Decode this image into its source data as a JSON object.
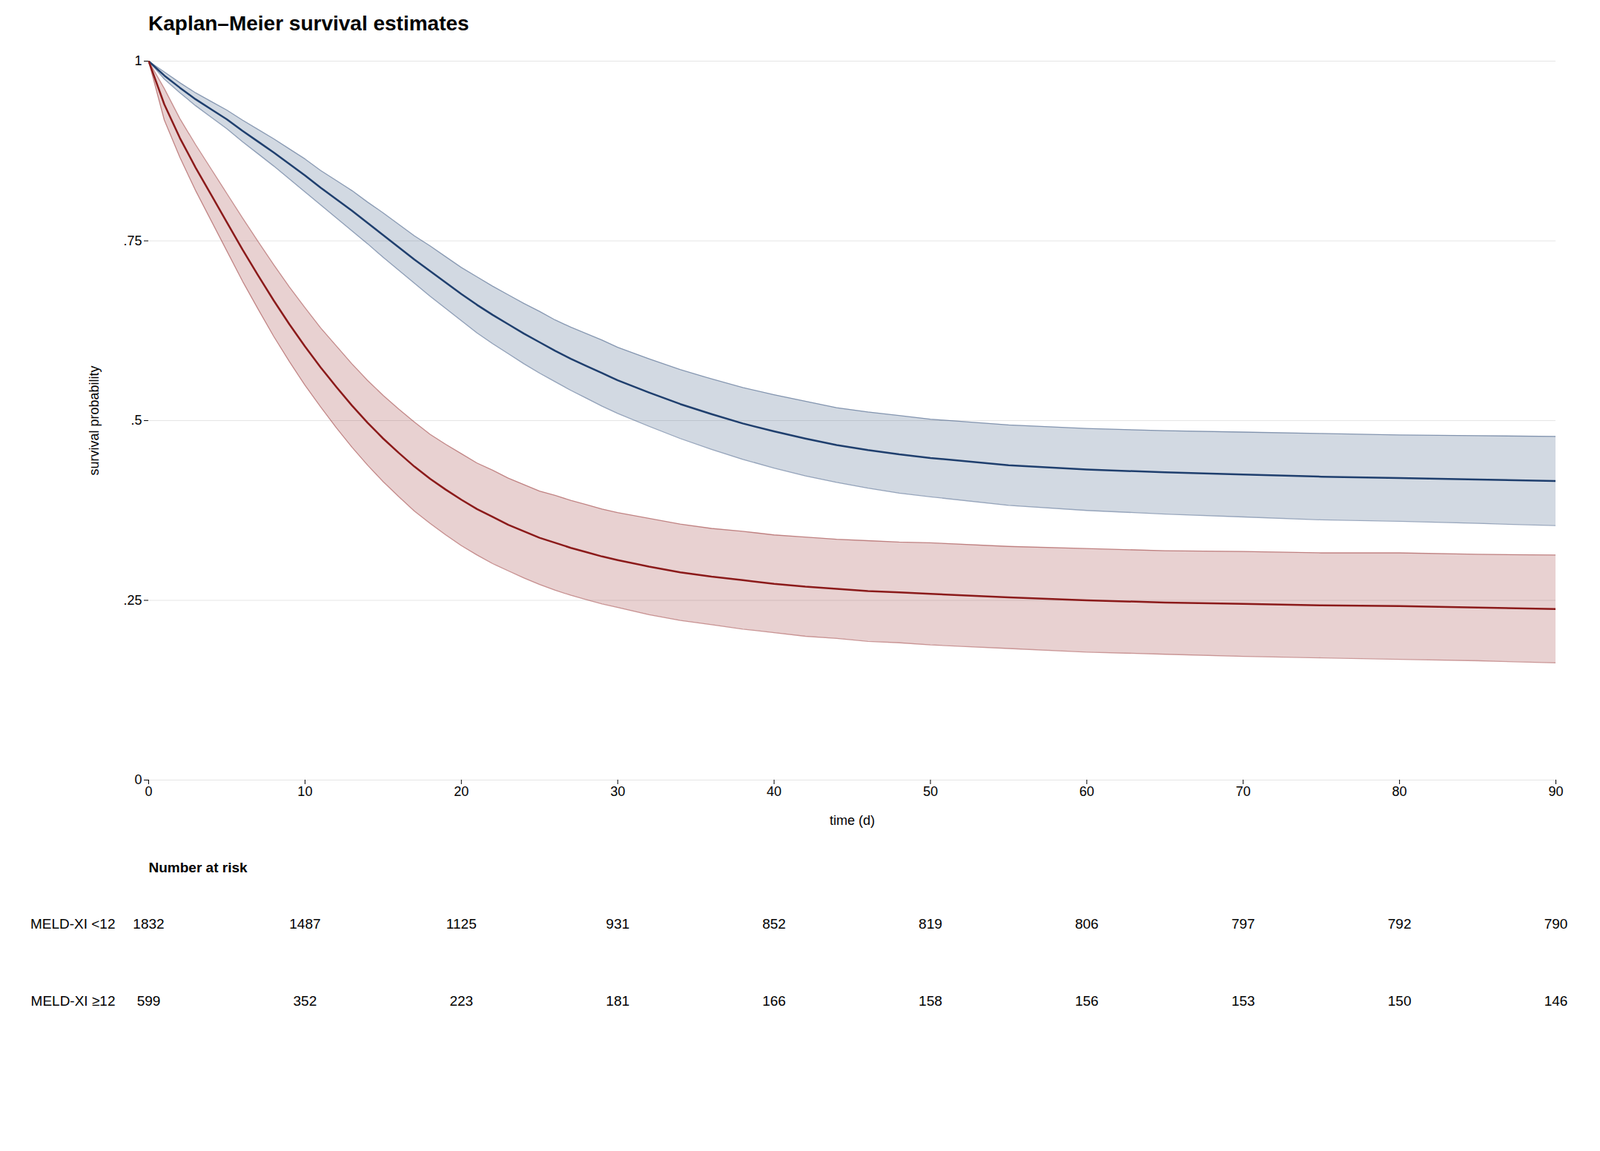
{
  "chart_data": {
    "type": "line",
    "title": "Kaplan–Meier survival estimates",
    "xlabel": "time (d)",
    "ylabel": "survival probability",
    "xlim": [
      0,
      90
    ],
    "ylim": [
      0,
      1
    ],
    "xticks": [
      0,
      10,
      20,
      30,
      40,
      50,
      60,
      70,
      80,
      90
    ],
    "yticks": [
      0,
      {
        "value": 0.25,
        "label": ".25"
      },
      {
        "value": 0.5,
        "label": ".5"
      },
      {
        "value": 0.75,
        "label": ".75"
      },
      1
    ],
    "grid": "y",
    "x": [
      0,
      1,
      2,
      3,
      4,
      5,
      6,
      7,
      8,
      9,
      10,
      11,
      12,
      13,
      14,
      15,
      16,
      17,
      18,
      19,
      20,
      21,
      22,
      23,
      24,
      25,
      26,
      27,
      28,
      29,
      30,
      32,
      34,
      36,
      38,
      40,
      42,
      44,
      46,
      48,
      50,
      55,
      60,
      65,
      70,
      75,
      80,
      85,
      90
    ],
    "risk_title": "Number at risk",
    "risk_times": [
      0,
      10,
      20,
      30,
      40,
      50,
      60,
      70,
      80,
      90
    ],
    "series": [
      {
        "name": "MELD-XI <12",
        "color": "#1f3f6e",
        "values": [
          1.0,
          0.98,
          0.963,
          0.947,
          0.933,
          0.919,
          0.903,
          0.888,
          0.873,
          0.857,
          0.841,
          0.824,
          0.808,
          0.792,
          0.775,
          0.758,
          0.741,
          0.724,
          0.708,
          0.692,
          0.676,
          0.661,
          0.647,
          0.634,
          0.621,
          0.609,
          0.597,
          0.586,
          0.576,
          0.566,
          0.556,
          0.539,
          0.523,
          0.509,
          0.496,
          0.485,
          0.475,
          0.466,
          0.459,
          0.453,
          0.448,
          0.438,
          0.432,
          0.428,
          0.425,
          0.422,
          0.42,
          0.418,
          0.416
        ],
        "lower": [
          1.0,
          0.975,
          0.956,
          0.938,
          0.922,
          0.906,
          0.888,
          0.871,
          0.854,
          0.836,
          0.818,
          0.8,
          0.782,
          0.764,
          0.746,
          0.727,
          0.709,
          0.691,
          0.673,
          0.656,
          0.639,
          0.622,
          0.607,
          0.593,
          0.579,
          0.566,
          0.554,
          0.542,
          0.531,
          0.52,
          0.51,
          0.492,
          0.475,
          0.46,
          0.446,
          0.434,
          0.423,
          0.414,
          0.406,
          0.399,
          0.394,
          0.382,
          0.375,
          0.37,
          0.366,
          0.362,
          0.36,
          0.357,
          0.354
        ],
        "upper": [
          1.0,
          0.985,
          0.97,
          0.956,
          0.944,
          0.932,
          0.918,
          0.905,
          0.892,
          0.878,
          0.864,
          0.848,
          0.834,
          0.82,
          0.804,
          0.789,
          0.773,
          0.757,
          0.743,
          0.728,
          0.713,
          0.7,
          0.687,
          0.675,
          0.663,
          0.652,
          0.64,
          0.63,
          0.621,
          0.612,
          0.602,
          0.586,
          0.571,
          0.558,
          0.546,
          0.536,
          0.527,
          0.518,
          0.512,
          0.507,
          0.502,
          0.494,
          0.489,
          0.486,
          0.484,
          0.482,
          0.48,
          0.479,
          0.478
        ],
        "at_risk": [
          1832,
          1487,
          1125,
          931,
          852,
          819,
          806,
          797,
          792,
          790
        ]
      },
      {
        "name": "MELD-XI ≥12",
        "color": "#8b1a1a",
        "values": [
          1.0,
          0.94,
          0.893,
          0.852,
          0.814,
          0.776,
          0.738,
          0.702,
          0.667,
          0.634,
          0.603,
          0.574,
          0.547,
          0.521,
          0.497,
          0.475,
          0.455,
          0.436,
          0.419,
          0.404,
          0.39,
          0.377,
          0.366,
          0.355,
          0.346,
          0.337,
          0.33,
          0.323,
          0.317,
          0.311,
          0.306,
          0.297,
          0.289,
          0.283,
          0.278,
          0.273,
          0.269,
          0.266,
          0.263,
          0.261,
          0.259,
          0.254,
          0.25,
          0.247,
          0.245,
          0.243,
          0.242,
          0.24,
          0.238
        ],
        "lower": [
          1.0,
          0.918,
          0.866,
          0.82,
          0.778,
          0.736,
          0.694,
          0.655,
          0.617,
          0.582,
          0.549,
          0.519,
          0.49,
          0.463,
          0.438,
          0.415,
          0.394,
          0.374,
          0.357,
          0.341,
          0.326,
          0.313,
          0.301,
          0.291,
          0.281,
          0.272,
          0.264,
          0.257,
          0.251,
          0.245,
          0.24,
          0.23,
          0.222,
          0.216,
          0.21,
          0.205,
          0.2,
          0.197,
          0.193,
          0.191,
          0.188,
          0.183,
          0.178,
          0.175,
          0.172,
          0.17,
          0.168,
          0.166,
          0.163
        ],
        "upper": [
          1.0,
          0.962,
          0.92,
          0.884,
          0.85,
          0.816,
          0.782,
          0.749,
          0.717,
          0.686,
          0.657,
          0.629,
          0.604,
          0.579,
          0.556,
          0.535,
          0.516,
          0.498,
          0.481,
          0.467,
          0.454,
          0.441,
          0.431,
          0.42,
          0.411,
          0.402,
          0.396,
          0.389,
          0.383,
          0.377,
          0.372,
          0.364,
          0.356,
          0.35,
          0.346,
          0.341,
          0.338,
          0.335,
          0.333,
          0.331,
          0.33,
          0.325,
          0.322,
          0.319,
          0.318,
          0.316,
          0.316,
          0.314,
          0.313
        ],
        "at_risk": [
          599,
          352,
          223,
          181,
          166,
          158,
          156,
          153,
          150,
          146
        ]
      }
    ]
  }
}
